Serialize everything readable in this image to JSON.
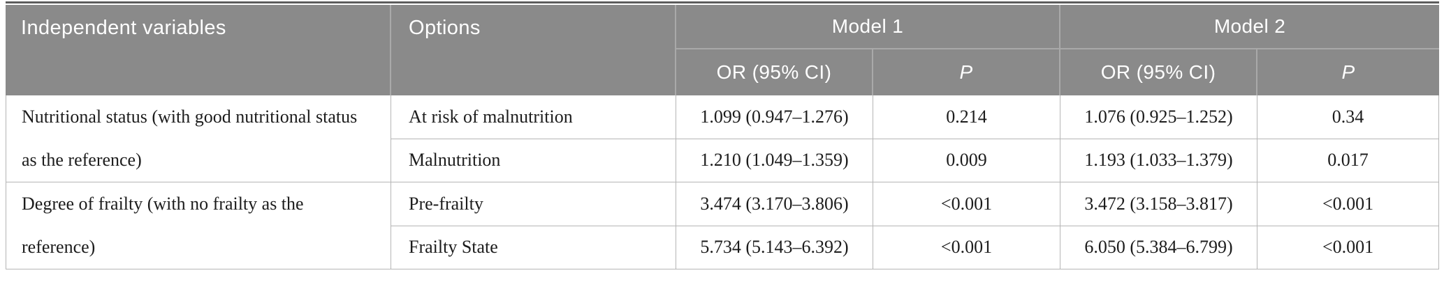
{
  "table": {
    "headers": {
      "independent_variables": "Independent variables",
      "options": "Options",
      "model1": "Model 1",
      "model2": "Model 2",
      "or_ci": "OR (95% CI)",
      "p": "P"
    },
    "groups": [
      {
        "variable": "Nutritional status (with good nutritional status as the reference)",
        "rows": [
          {
            "option": "At risk of malnutrition",
            "m1_or": "1.099 (0.947–1.276)",
            "m1_p": "0.214",
            "m2_or": "1.076 (0.925–1.252)",
            "m2_p": "0.34"
          },
          {
            "option": "Malnutrition",
            "m1_or": "1.210 (1.049–1.359)",
            "m1_p": "0.009",
            "m2_or": "1.193 (1.033–1.379)",
            "m2_p": "0.017"
          }
        ]
      },
      {
        "variable": "Degree of frailty (with no frailty as the reference)",
        "rows": [
          {
            "option": "Pre-frailty",
            "m1_or": "3.474 (3.170–3.806)",
            "m1_p": "<0.001",
            "m2_or": "3.472 (3.158–3.817)",
            "m2_p": "<0.001"
          },
          {
            "option": "Frailty State",
            "m1_or": "5.734 (5.143–6.392)",
            "m1_p": "<0.001",
            "m2_or": "6.050 (5.384–6.799)",
            "m2_p": "<0.001"
          }
        ]
      }
    ],
    "colors": {
      "header_bg": "#8a8a8a",
      "header_text": "#ffffff",
      "header_divider": "#a9a9a9",
      "grid_line": "#b5b5b5",
      "top_rule": "#5d5d5d",
      "body_text": "#1c1c1c"
    }
  }
}
